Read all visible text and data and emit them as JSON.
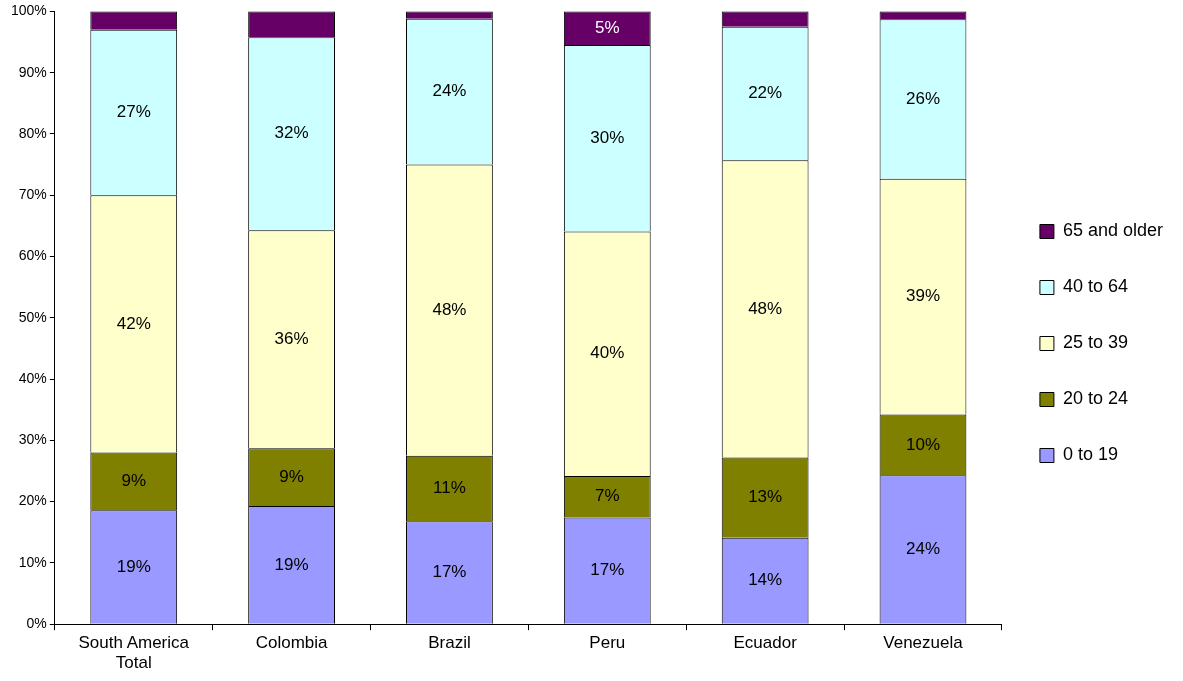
{
  "chart_data": {
    "type": "bar",
    "stacked": true,
    "legend": "right",
    "categories": [
      "South America Total",
      "Colombia",
      "Brazil",
      "Peru",
      "Ecuador",
      "Venezuela"
    ],
    "ylim": [
      0,
      100
    ],
    "yticks": [
      {
        "value": 0,
        "label": "0%"
      },
      {
        "value": 10,
        "label": "10%"
      },
      {
        "value": 20,
        "label": "20%"
      },
      {
        "value": 30,
        "label": "30%"
      },
      {
        "value": 40,
        "label": "40%"
      },
      {
        "value": 50,
        "label": "50%"
      },
      {
        "value": 60,
        "label": "60%"
      },
      {
        "value": 70,
        "label": "70%"
      },
      {
        "value": 80,
        "label": "80%"
      },
      {
        "value": 90,
        "label": "90%"
      },
      {
        "value": 100,
        "label": "100%"
      }
    ],
    "series": [
      {
        "name": "0 to 19",
        "color": "#9999ff",
        "values": [
          18.6,
          19.3,
          16.8,
          17.4,
          14.1,
          24.3
        ],
        "value_labels": [
          "19%",
          "19%",
          "17%",
          "17%",
          "14%",
          "24%"
        ]
      },
      {
        "name": "20 to 24",
        "color": "#808000",
        "values": [
          9.4,
          9.4,
          10.7,
          6.8,
          13.1,
          9.9
        ],
        "value_labels": [
          "9%",
          "9%",
          "11%",
          "7%",
          "13%",
          "10%"
        ]
      },
      {
        "name": "25 to 39",
        "color": "#ffffcc",
        "values": [
          42.0,
          35.6,
          47.5,
          39.9,
          48.5,
          38.5
        ],
        "value_labels": [
          "42%",
          "36%",
          "48%",
          "40%",
          "48%",
          "39%"
        ]
      },
      {
        "name": "40 to 64",
        "color": "#ccffff",
        "values": [
          27.0,
          31.5,
          23.8,
          30.4,
          21.8,
          26.0
        ],
        "value_labels": [
          "27%",
          "32%",
          "24%",
          "30%",
          "22%",
          "26%"
        ]
      },
      {
        "name": "65 and older",
        "color": "#660066",
        "values": [
          3.0,
          4.2,
          1.2,
          5.5,
          2.5,
          1.3
        ],
        "value_labels": [
          null,
          null,
          null,
          "5%",
          null,
          null
        ]
      }
    ]
  }
}
